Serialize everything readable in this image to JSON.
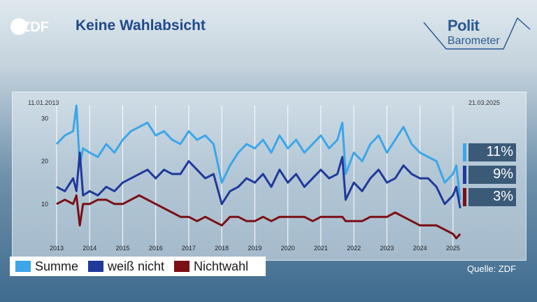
{
  "header": {
    "logo_text": "ZDF",
    "title": "Keine Wahlabsicht",
    "brand_line1": "Polit",
    "brand_line2": "Barometer"
  },
  "dates": {
    "start": "11.01.2013",
    "end": "21.03.2025"
  },
  "source": "Quelle: ZDF",
  "colors": {
    "summe": "#3ca6e8",
    "weiss_nicht": "#1f3a9a",
    "nichtwahl": "#7a0f14"
  },
  "badges": [
    {
      "label": "11%",
      "color": "#3ca6e8"
    },
    {
      "label": "9%",
      "color": "#1f3a9a"
    },
    {
      "label": "3%",
      "color": "#7a0f14"
    }
  ],
  "chart_data": {
    "type": "line",
    "title": "Keine Wahlabsicht",
    "x_ticks": [
      "2013",
      "2014",
      "2015",
      "2016",
      "2017",
      "2018",
      "2019",
      "2020",
      "2021",
      "2022",
      "2023",
      "2024",
      "2025"
    ],
    "y_ticks": [
      "10",
      "20",
      "30"
    ],
    "xlim": [
      2013.0,
      2025.3
    ],
    "ylim": [
      0,
      33
    ],
    "grid": true,
    "legend_position": "bottom-left",
    "x": [
      2013.0,
      2013.25,
      2013.5,
      2013.6,
      2013.7,
      2013.8,
      2014.0,
      2014.25,
      2014.5,
      2014.75,
      2015.0,
      2015.25,
      2015.5,
      2015.75,
      2016.0,
      2016.25,
      2016.5,
      2016.75,
      2017.0,
      2017.25,
      2017.5,
      2017.75,
      2018.0,
      2018.25,
      2018.5,
      2018.75,
      2019.0,
      2019.25,
      2019.5,
      2019.75,
      2020.0,
      2020.25,
      2020.5,
      2020.75,
      2021.0,
      2021.25,
      2021.5,
      2021.65,
      2021.75,
      2022.0,
      2022.25,
      2022.5,
      2022.75,
      2023.0,
      2023.25,
      2023.5,
      2023.75,
      2024.0,
      2024.25,
      2024.5,
      2024.75,
      2025.0,
      2025.1,
      2025.22
    ],
    "series": [
      {
        "name": "Summe",
        "values": [
          24,
          26,
          27,
          33,
          19,
          23,
          22,
          21,
          24,
          22,
          25,
          27,
          28,
          29,
          26,
          27,
          25,
          24,
          27,
          25,
          26,
          24,
          15,
          19,
          22,
          24,
          23,
          25,
          22,
          26,
          23,
          25,
          22,
          24,
          26,
          23,
          25,
          29,
          17,
          22,
          20,
          24,
          26,
          22,
          25,
          28,
          24,
          22,
          21,
          20,
          15,
          17,
          19,
          11
        ]
      },
      {
        "name": "weiß nicht",
        "values": [
          14,
          13,
          16,
          13,
          22,
          12,
          13,
          12,
          14,
          13,
          15,
          16,
          17,
          18,
          16,
          18,
          17,
          17,
          20,
          18,
          16,
          17,
          10,
          13,
          14,
          16,
          15,
          17,
          14,
          18,
          15,
          17,
          14,
          16,
          18,
          16,
          17,
          21,
          11,
          15,
          13,
          16,
          18,
          15,
          16,
          19,
          17,
          16,
          16,
          14,
          10,
          12,
          14,
          9
        ]
      },
      {
        "name": "Nichtwahl",
        "values": [
          10,
          11,
          10,
          12,
          5,
          10,
          10,
          11,
          11,
          10,
          10,
          11,
          12,
          11,
          10,
          9,
          8,
          7,
          7,
          6,
          7,
          6,
          5,
          7,
          7,
          6,
          6,
          7,
          6,
          7,
          7,
          7,
          7,
          6,
          7,
          7,
          7,
          7,
          6,
          6,
          6,
          7,
          7,
          7,
          8,
          7,
          6,
          5,
          5,
          5,
          4,
          3,
          2,
          3
        ]
      }
    ]
  }
}
